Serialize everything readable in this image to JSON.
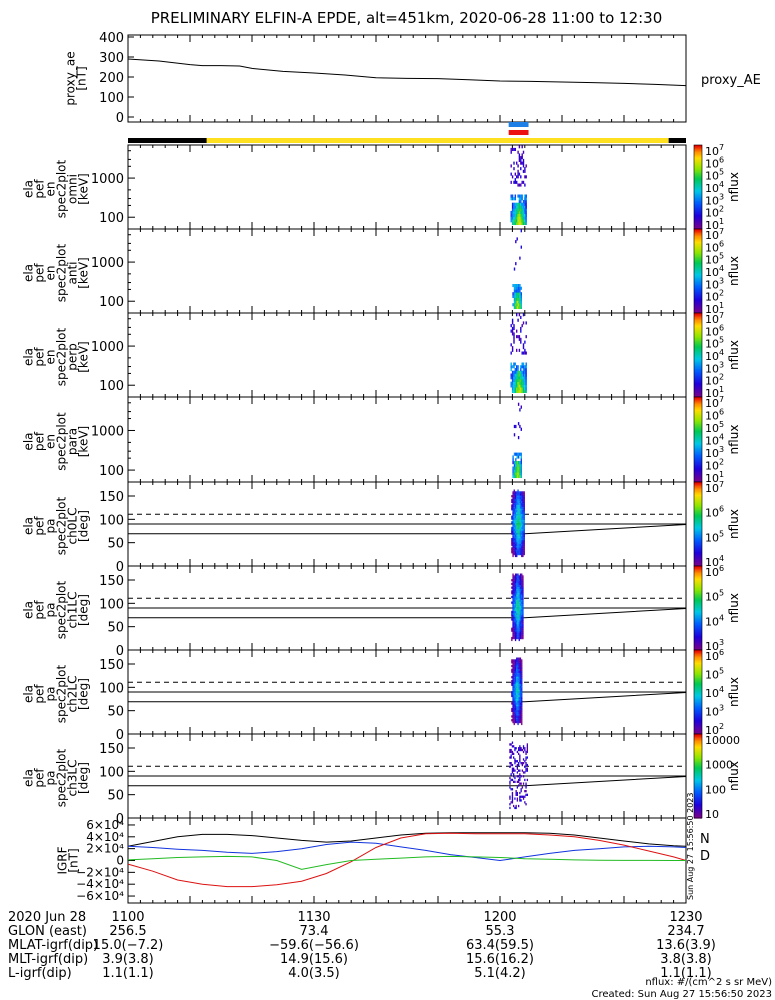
{
  "title": "PRELIMINARY ELFIN-A EPDE, alt=451km, 2020-06-28 11:00 to 12:30",
  "colors": {
    "night_bar": "#000000",
    "day_bar": "#ffe020",
    "marker_blue": "#1e7fe6",
    "marker_red": "#ee1111",
    "trace_black": "#000000",
    "trace_blue": "#1133dd",
    "trace_red": "#dd1111",
    "trace_green": "#22bb22"
  },
  "chart_data": [
    {
      "type": "line",
      "panel": "proxy_ae",
      "ylabel": [
        "proxy_ae",
        "[nT]"
      ],
      "series_label": "proxy_AE",
      "ylim": [
        0,
        420
      ],
      "yticks": [
        "400",
        "300",
        "200",
        "100",
        "0"
      ],
      "x": [
        0,
        5,
        10,
        12,
        15,
        18,
        20,
        25,
        30,
        35,
        40,
        45,
        50,
        55,
        60,
        65,
        70,
        75,
        80,
        85,
        90
      ],
      "values": [
        290,
        280,
        262,
        257,
        257,
        255,
        243,
        228,
        220,
        210,
        196,
        193,
        192,
        186,
        180,
        178,
        175,
        172,
        168,
        163,
        157
      ]
    },
    {
      "type": "heatmap",
      "panel": "en omni",
      "ylabel": [
        "ela",
        "pef",
        "en",
        "spec2plot",
        "omni",
        "[keV]"
      ],
      "yticks": [
        "1000",
        "100"
      ],
      "colorbar_label": "nflux",
      "colorbar_ticks": [
        "10^7",
        "10^6",
        "10^5",
        "10^4",
        "10^3",
        "10^2",
        "10^1"
      ],
      "time_window_min": [
        61.7,
        64.3
      ],
      "peak_energy_keV": [
        60,
        200
      ]
    },
    {
      "type": "heatmap",
      "panel": "en anti",
      "ylabel": [
        "ela",
        "pef",
        "en",
        "spec2plot",
        "anti",
        "[keV]"
      ],
      "yticks": [
        "1000",
        "100"
      ],
      "colorbar_label": "nflux",
      "colorbar_ticks": [
        "10^7",
        "10^6",
        "10^5",
        "10^4",
        "10^3",
        "10^2",
        "10^1"
      ],
      "time_window_min": [
        62.0,
        63.5
      ],
      "peak_energy_keV": [
        60,
        150
      ]
    },
    {
      "type": "heatmap",
      "panel": "en perp",
      "ylabel": [
        "ela",
        "pef",
        "en",
        "spec2plot",
        "perp",
        "[keV]"
      ],
      "yticks": [
        "1000",
        "100"
      ],
      "colorbar_label": "nflux",
      "colorbar_ticks": [
        "10^7",
        "10^6",
        "10^5",
        "10^4",
        "10^3",
        "10^2",
        "10^1"
      ],
      "time_window_min": [
        61.7,
        64.3
      ],
      "peak_energy_keV": [
        60,
        200
      ]
    },
    {
      "type": "heatmap",
      "panel": "en para",
      "ylabel": [
        "ela",
        "pef",
        "en",
        "spec2plot",
        "para",
        "[keV]"
      ],
      "yticks": [
        "1000",
        "100"
      ],
      "colorbar_label": "nflux",
      "colorbar_ticks": [
        "10^7",
        "10^6",
        "10^5",
        "10^4",
        "10^3",
        "10^2",
        "10^1"
      ],
      "time_window_min": [
        62.0,
        63.5
      ],
      "peak_energy_keV": [
        60,
        150
      ]
    },
    {
      "type": "heatmap",
      "panel": "pa ch0LC",
      "ylabel": [
        "ela",
        "pef",
        "pa",
        "spec2plot",
        "ch0LC",
        "[deg]"
      ],
      "ylim": [
        0,
        180
      ],
      "yticks": [
        "150",
        "100",
        "50",
        "0"
      ],
      "colorbar_label": "nflux",
      "colorbar_ticks": [
        "10^7",
        "10^6",
        "10^5",
        "10^4"
      ],
      "reference_lines_deg": {
        "dashed": 111,
        "solid_upper": 90,
        "solid_lower": 69
      },
      "time_window_min": [
        61.8,
        64.0
      ]
    },
    {
      "type": "heatmap",
      "panel": "pa ch1LC",
      "ylabel": [
        "ela",
        "pef",
        "pa",
        "spec2plot",
        "ch1LC",
        "[deg]"
      ],
      "ylim": [
        0,
        180
      ],
      "yticks": [
        "150",
        "100",
        "50",
        "0"
      ],
      "colorbar_label": "nflux",
      "colorbar_ticks": [
        "10^6",
        "10^5",
        "10^4",
        "10^3"
      ],
      "reference_lines_deg": {
        "dashed": 111,
        "solid_upper": 90,
        "solid_lower": 69
      },
      "time_window_min": [
        61.8,
        63.8
      ]
    },
    {
      "type": "heatmap",
      "panel": "pa ch2LC",
      "ylabel": [
        "ela",
        "pef",
        "pa",
        "spec2plot",
        "ch2LC",
        "[deg]"
      ],
      "ylim": [
        0,
        180
      ],
      "yticks": [
        "150",
        "100",
        "50",
        "0"
      ],
      "colorbar_label": "nflux",
      "colorbar_ticks": [
        "10^6",
        "10^5",
        "10^4",
        "10^3",
        "10^2"
      ],
      "reference_lines_deg": {
        "dashed": 111,
        "solid_upper": 90,
        "solid_lower": 69
      },
      "time_window_min": [
        61.8,
        63.6
      ]
    },
    {
      "type": "heatmap",
      "panel": "pa ch3LC",
      "ylabel": [
        "ela",
        "pef",
        "pa",
        "spec2plot",
        "ch3LC",
        "[deg]"
      ],
      "ylim": [
        0,
        180
      ],
      "yticks": [
        "150",
        "100",
        "50",
        "0"
      ],
      "colorbar_label": "nflux",
      "colorbar_ticks": [
        "10000",
        "1000",
        "100",
        "10"
      ],
      "reference_lines_deg": {
        "dashed": 111,
        "solid_upper": 90,
        "solid_lower": 69
      },
      "time_window_min": [
        61.5,
        64.5
      ]
    },
    {
      "type": "line",
      "panel": "IGRF",
      "ylabel": [
        "IGRF",
        "[nT]"
      ],
      "ylim": [
        -65000,
        70000
      ],
      "yticks": [
        "6×10⁴",
        "4×10⁴",
        "2×10⁴",
        "0",
        "−2×10⁴",
        "−4×10⁴",
        "−6×10⁴"
      ],
      "legend": [
        "N",
        "D"
      ],
      "side_text": "Sun Aug 27 15:56:50 2023",
      "x": [
        0,
        4,
        8,
        12,
        16,
        20,
        24,
        28,
        32,
        36,
        40,
        44,
        48,
        52,
        56,
        60,
        64,
        68,
        72,
        76,
        80,
        84,
        88,
        90
      ],
      "series": [
        {
          "color": "black",
          "values": [
            24000,
            32000,
            40000,
            44000,
            44000,
            42000,
            38000,
            34000,
            31000,
            33000,
            38000,
            43000,
            46000,
            47000,
            47000,
            47000,
            47000,
            46000,
            43000,
            38000,
            33000,
            28000,
            25000,
            24000
          ]
        },
        {
          "color": "blue",
          "values": [
            24000,
            22000,
            19000,
            17000,
            14000,
            12000,
            15000,
            20000,
            27000,
            31000,
            29000,
            23000,
            17000,
            10000,
            5000,
            0,
            6000,
            12000,
            17000,
            20000,
            23000,
            24000,
            23000,
            22000
          ]
        },
        {
          "color": "red",
          "values": [
            -6000,
            -18000,
            -33000,
            -40000,
            -44000,
            -44000,
            -41000,
            -35000,
            -22000,
            -2000,
            22000,
            38000,
            45000,
            46000,
            45000,
            45000,
            45000,
            43000,
            40000,
            34000,
            26000,
            16000,
            6000,
            0
          ]
        },
        {
          "color": "green",
          "values": [
            1000,
            3000,
            5000,
            6000,
            7000,
            6000,
            0,
            -15000,
            -7000,
            0,
            2000,
            4000,
            6000,
            7000,
            6000,
            5000,
            3000,
            2000,
            1000,
            500,
            200,
            100,
            0,
            0
          ]
        }
      ]
    }
  ],
  "footer": {
    "row_labels": [
      "2020 Jun 28",
      "GLON (east)",
      "MLAT-igrf(dip)",
      "MLT-igrf(dip)",
      "L-igrf(dip)"
    ],
    "columns": [
      {
        "x_min": 0,
        "values": [
          "1100",
          "256.5",
          "15.0(−7.2)",
          "3.9(3.8)",
          "1.1(1.1)"
        ]
      },
      {
        "x_min": 30,
        "values": [
          "1130",
          "73.4",
          "−59.6(−56.6)",
          "14.9(15.6)",
          "4.0(3.5)"
        ]
      },
      {
        "x_min": 60,
        "values": [
          "1200",
          "55.3",
          "63.4(59.5)",
          "15.6(16.2)",
          "5.1(4.2)"
        ]
      },
      {
        "x_min": 90,
        "values": [
          "1230",
          "234.7",
          "13.6(3.9)",
          "3.8(3.8)",
          "1.1(1.1)"
        ]
      }
    ],
    "nflux_units": "nflux: #/(cm^2 s sr MeV)",
    "created": "Created: Sun Aug 27 15:56:50 2023"
  }
}
